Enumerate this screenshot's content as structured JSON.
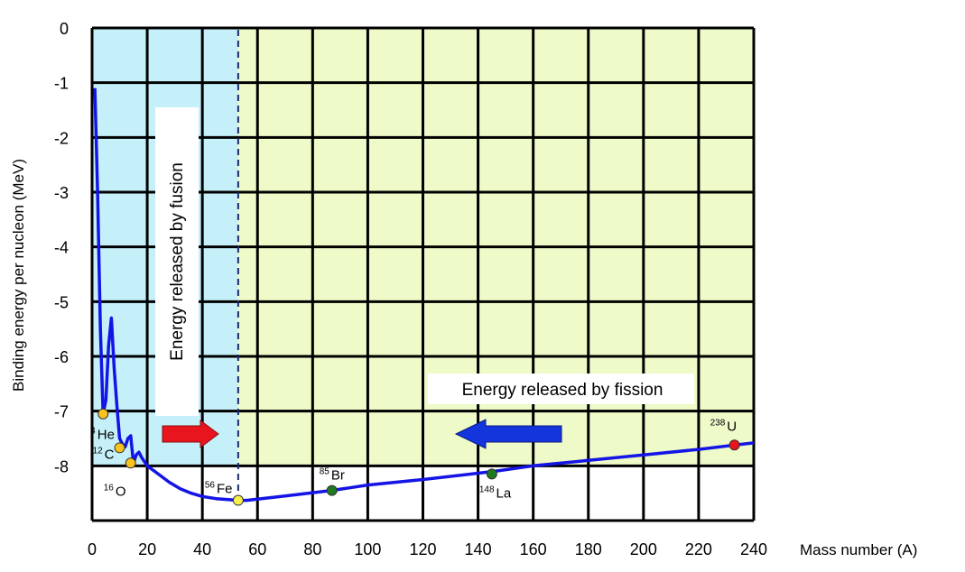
{
  "chart_data": {
    "type": "line",
    "xlabel": "Mass number (A)",
    "ylabel": "Binding energy per nucleon (MeV)",
    "xlim": [
      0,
      240
    ],
    "ylim": [
      -9,
      0
    ],
    "x_ticks": [
      0,
      20,
      40,
      60,
      80,
      100,
      120,
      140,
      160,
      180,
      200,
      220,
      240
    ],
    "y_ticks": [
      0,
      -1,
      -2,
      -3,
      -4,
      -5,
      -6,
      -7,
      -8
    ],
    "grid": true,
    "fusion_boundary_x": 53,
    "regions": [
      {
        "name": "fusion",
        "from_x": 0,
        "to_x": 53,
        "color": "#c6f0f9"
      },
      {
        "name": "fission",
        "from_x": 53,
        "to_x": 240,
        "color": "#eefac8"
      }
    ],
    "region_floor_y": -8,
    "series": [
      {
        "color": "#1414e6",
        "points": [
          [
            1,
            -1.1
          ],
          [
            2,
            -3.0
          ],
          [
            3,
            -5.5
          ],
          [
            4,
            -7.05
          ],
          [
            5,
            -6.8
          ],
          [
            6,
            -5.8
          ],
          [
            7,
            -5.3
          ],
          [
            8,
            -6.2
          ],
          [
            9,
            -6.9
          ],
          [
            10,
            -7.5
          ],
          [
            11,
            -7.6
          ],
          [
            12,
            -7.65
          ],
          [
            13,
            -7.5
          ],
          [
            14,
            -7.45
          ],
          [
            15,
            -7.95
          ],
          [
            16,
            -7.8
          ],
          [
            17,
            -7.75
          ],
          [
            18,
            -7.85
          ],
          [
            20,
            -8.0
          ],
          [
            24,
            -8.15
          ],
          [
            28,
            -8.3
          ],
          [
            32,
            -8.42
          ],
          [
            36,
            -8.5
          ],
          [
            40,
            -8.56
          ],
          [
            45,
            -8.6
          ],
          [
            50,
            -8.62
          ],
          [
            53,
            -8.63
          ],
          [
            56,
            -8.63
          ],
          [
            70,
            -8.55
          ],
          [
            87,
            -8.45
          ],
          [
            100,
            -8.35
          ],
          [
            120,
            -8.25
          ],
          [
            146,
            -8.1
          ],
          [
            160,
            -8.0
          ],
          [
            180,
            -7.9
          ],
          [
            200,
            -7.8
          ],
          [
            220,
            -7.7
          ],
          [
            233,
            -7.62
          ],
          [
            240,
            -7.58
          ]
        ]
      }
    ],
    "isotopes": [
      {
        "mass": "4",
        "symbol": "He",
        "x": 4,
        "y": -7.05,
        "color": "#f7c31c"
      },
      {
        "mass": "12",
        "symbol": "C",
        "x": 10,
        "y": -7.67,
        "color": "#f7c31c"
      },
      {
        "mass": "16",
        "symbol": "O",
        "x": 14,
        "y": -7.95,
        "color": "#f7c31c"
      },
      {
        "mass": "56",
        "symbol": "Fe",
        "x": 53,
        "y": -8.63,
        "color": "#f7f04a"
      },
      {
        "mass": "85",
        "symbol": "Br",
        "x": 87,
        "y": -8.45,
        "color": "#1e7a1e"
      },
      {
        "mass": "148",
        "symbol": "La",
        "x": 145,
        "y": -8.15,
        "color": "#1e7a1e"
      },
      {
        "mass": "238",
        "symbol": "U",
        "x": 233,
        "y": -7.62,
        "color": "#e8141e"
      }
    ],
    "annotations": {
      "fusion": "Energy released by fusion",
      "fission": "Energy released by fission"
    },
    "arrows": {
      "fusion_color": "#e8141e",
      "fission_color": "#1434dc"
    }
  }
}
